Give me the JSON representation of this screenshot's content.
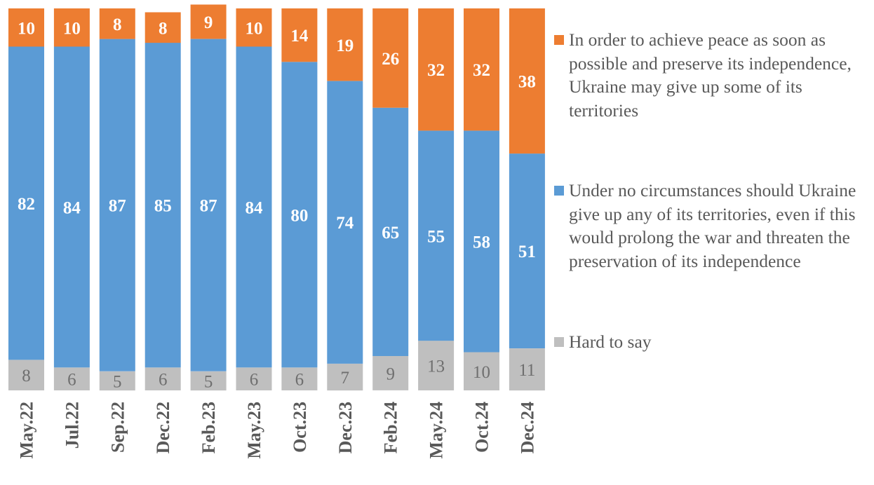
{
  "chart_data": {
    "type": "bar",
    "stacked": true,
    "orientation": "vertical",
    "title": "",
    "xlabel": "",
    "ylabel": "",
    "ylim": [
      0,
      100
    ],
    "grid": false,
    "legend_position": "right",
    "categories": [
      "May.22",
      "Jul.22",
      "Sep.22",
      "Dec.22",
      "Feb.23",
      "May.23",
      "Oct.23",
      "Dec.23",
      "Feb.24",
      "May.24",
      "Oct.24",
      "Dec.24"
    ],
    "series": [
      {
        "key": "hard",
        "name": "Hard to say",
        "color": "#bfbfbf",
        "values": [
          8,
          6,
          5,
          6,
          5,
          6,
          6,
          7,
          9,
          13,
          10,
          11
        ]
      },
      {
        "key": "no",
        "name": "Under no circumstances should Ukraine give up any of its territories, even if this would prolong the war and threaten the preservation of its independence",
        "color": "#5b9bd5",
        "values": [
          82,
          84,
          87,
          85,
          87,
          84,
          80,
          74,
          65,
          55,
          58,
          51
        ]
      },
      {
        "key": "yes",
        "name": "In order to achieve peace as soon as possible and preserve its independence, Ukraine may give up some of its territories",
        "color": "#ed7d31",
        "values": [
          10,
          10,
          8,
          8,
          9,
          10,
          14,
          19,
          26,
          32,
          32,
          38
        ]
      }
    ]
  },
  "legend": {
    "items": [
      {
        "key": "yes",
        "label": "In order to achieve peace as soon as possible and preserve its independence, Ukraine may give up some of its territories",
        "color": "#ed7d31"
      },
      {
        "key": "no",
        "label": "Under no circumstances should Ukraine give up any of its territories, even if this would prolong the war and threaten the preservation of its independence",
        "color": "#5b9bd5"
      },
      {
        "key": "hard",
        "label": "Hard to say",
        "color": "#bfbfbf"
      }
    ]
  }
}
